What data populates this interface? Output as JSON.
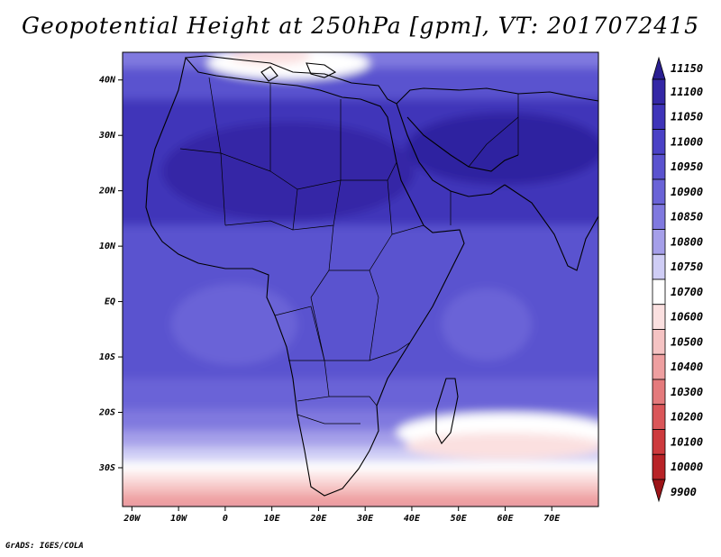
{
  "map": {
    "title": "Geopotential Height at 250hPa [gpm], VT: 2017072415",
    "lon_labels": [
      "20W",
      "10W",
      "0",
      "10E",
      "20E",
      "30E",
      "40E",
      "50E",
      "60E",
      "70E"
    ],
    "lon_values": [
      -20,
      -10,
      0,
      10,
      20,
      30,
      40,
      50,
      60,
      70
    ],
    "lat_labels": [
      "40N",
      "30N",
      "20N",
      "10N",
      "EQ",
      "10S",
      "20S",
      "30S"
    ],
    "lat_values": [
      40,
      30,
      20,
      10,
      0,
      -10,
      -20,
      -30
    ],
    "extent": {
      "lon_min": -22,
      "lon_max": 80,
      "lat_min": -37,
      "lat_max": 45
    },
    "credit": "GrADS: IGES/COLA"
  },
  "colorbar": {
    "levels": [
      "11150",
      "11100",
      "11050",
      "11000",
      "10950",
      "10900",
      "10850",
      "10800",
      "10750",
      "10700",
      "10600",
      "10500",
      "10400",
      "10300",
      "10200",
      "10100",
      "10000",
      "9900"
    ],
    "colors": [
      "#2a1f91",
      "#3427a6",
      "#3f34b9",
      "#4a41c6",
      "#5a52cf",
      "#6a63d7",
      "#8079df",
      "#a59fe9",
      "#cfcdf5",
      "#ffffff",
      "#fbe0e0",
      "#f5c3c3",
      "#ee9fa0",
      "#e47a7c",
      "#da5659",
      "#cd3a3d",
      "#b82327",
      "#9c1418"
    ]
  }
}
